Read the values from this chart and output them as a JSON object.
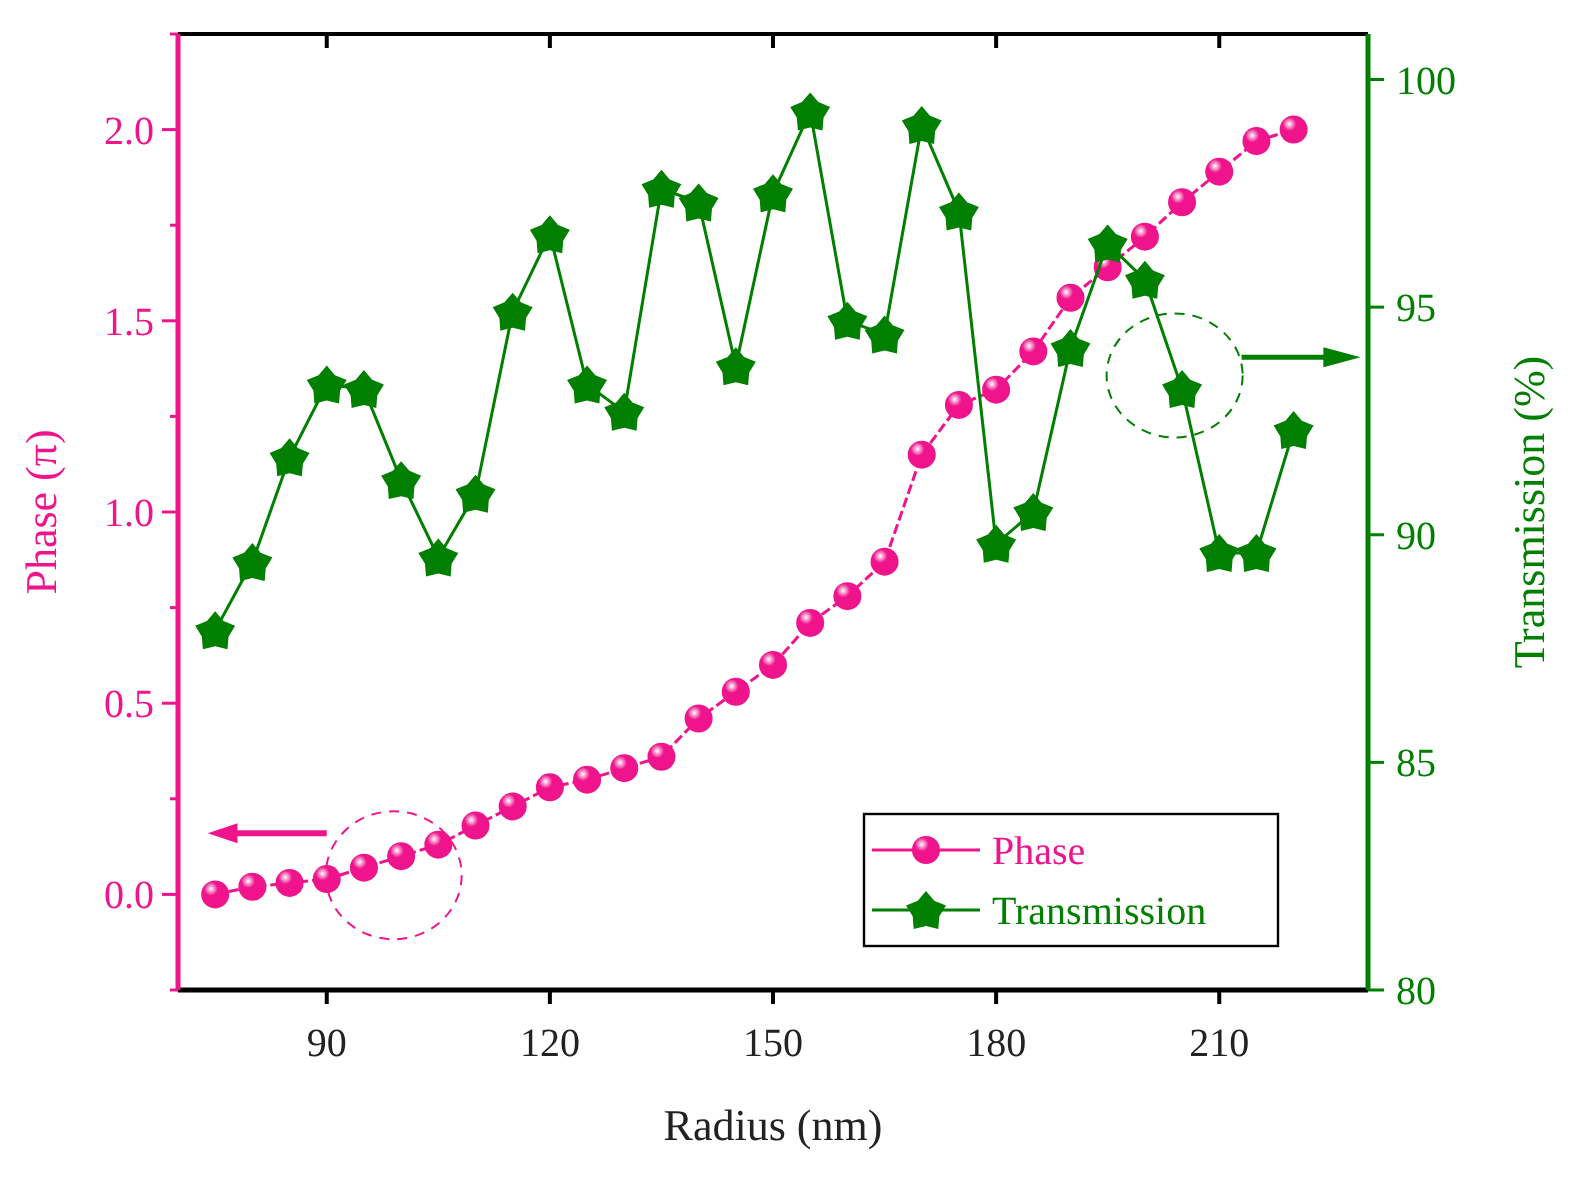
{
  "chart_data": {
    "type": "line",
    "xlabel": "Radius (nm)",
    "ylabel": "Phase (π)",
    "y2label": "Transmission (%)",
    "x": [
      75,
      80,
      85,
      90,
      95,
      100,
      105,
      110,
      115,
      120,
      125,
      130,
      135,
      140,
      145,
      150,
      155,
      160,
      165,
      170,
      175,
      180,
      185,
      190,
      195,
      200,
      205,
      210,
      215,
      220
    ],
    "series": [
      {
        "name": "Phase",
        "color": "#f0148c",
        "marker": "circle",
        "line_style": "dashed",
        "values": [
          0,
          0.02,
          0.03,
          0.04,
          0.07,
          0.1,
          0.13,
          0.18,
          0.23,
          0.28,
          0.3,
          0.33,
          0.36,
          0.46,
          0.53,
          0.6,
          0.71,
          0.78,
          0.87,
          1.15,
          1.28,
          1.32,
          1.42,
          1.56,
          1.64,
          1.72,
          1.81,
          1.89,
          1.97,
          2.0
        ]
      },
      {
        "name": "Transmission",
        "color": "#007f00",
        "marker": "star",
        "line_style": "solid",
        "axis": "y2",
        "values": [
          87.9,
          89.4,
          91.7,
          93.3,
          93.2,
          91.2,
          89.5,
          90.9,
          94.9,
          96.6,
          93.3,
          92.7,
          97.6,
          97.3,
          93.7,
          97.5,
          99.3,
          94.7,
          94.4,
          99.0,
          97.1,
          89.8,
          90.5,
          94.1,
          96.4,
          95.6,
          93.2,
          89.6,
          89.6,
          92.3
        ]
      }
    ],
    "xlim": [
      70,
      230
    ],
    "xticks": [
      90,
      120,
      150,
      180,
      210
    ],
    "ylim": [
      -0.25,
      2.25
    ],
    "yticks": [
      {
        "value": -0.25,
        "label": null
      },
      {
        "value": 0,
        "label": "0.0"
      },
      {
        "value": 0.25,
        "label": null
      },
      {
        "value": 0.5,
        "label": "0.5"
      },
      {
        "value": 0.75,
        "label": null
      },
      {
        "value": 1,
        "label": "1.0"
      },
      {
        "value": 1.25,
        "label": null
      },
      {
        "value": 1.5,
        "label": "1.5"
      },
      {
        "value": 1.75,
        "label": null
      },
      {
        "value": 2,
        "label": "2.0"
      },
      {
        "value": 2.25,
        "label": null
      }
    ],
    "y2lim": [
      80,
      101
    ],
    "y2ticks": [
      80,
      85,
      90,
      95,
      100
    ],
    "grid": false,
    "legend": "bottom right"
  }
}
